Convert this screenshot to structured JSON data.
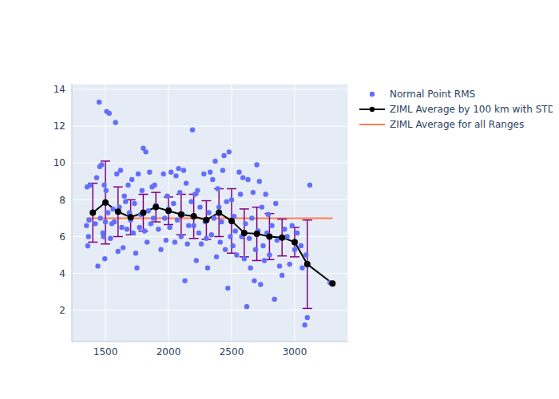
{
  "chart_data": {
    "type": "scatter",
    "grid": true,
    "legend": "right",
    "xlim": [
      1234,
      3424
    ],
    "xticks": [
      1500,
      2000,
      2500,
      3000
    ],
    "ylim": [
      0.3,
      14.3
    ],
    "yticks": [
      2,
      4,
      6,
      8,
      10,
      12,
      14
    ],
    "series": [
      {
        "name": "Normal Point RMS",
        "type": "scatter",
        "marker": "circle",
        "color": "#636efa",
        "x": [
          1350,
          1355,
          1360,
          1365,
          1370,
          1380,
          1400,
          1420,
          1430,
          1440,
          1450,
          1455,
          1460,
          1470,
          1480,
          1485,
          1490,
          1495,
          1500,
          1505,
          1510,
          1520,
          1530,
          1540,
          1550,
          1560,
          1570,
          1580,
          1590,
          1600,
          1610,
          1620,
          1630,
          1640,
          1650,
          1660,
          1670,
          1680,
          1690,
          1700,
          1710,
          1720,
          1730,
          1740,
          1750,
          1760,
          1770,
          1780,
          1790,
          1800,
          1810,
          1820,
          1830,
          1840,
          1850,
          1860,
          1870,
          1880,
          1890,
          1900,
          1920,
          1940,
          1960,
          1970,
          1980,
          1990,
          2000,
          2010,
          2020,
          2040,
          2050,
          2060,
          2070,
          2080,
          2090,
          2100,
          2110,
          2120,
          2130,
          2140,
          2150,
          2160,
          2180,
          2190,
          2200,
          2210,
          2220,
          2230,
          2240,
          2250,
          2260,
          2280,
          2290,
          2300,
          2310,
          2320,
          2330,
          2340,
          2350,
          2360,
          2370,
          2380,
          2390,
          2400,
          2410,
          2420,
          2430,
          2440,
          2450,
          2460,
          2470,
          2480,
          2490,
          2500,
          2510,
          2520,
          2530,
          2540,
          2560,
          2570,
          2580,
          2590,
          2600,
          2610,
          2620,
          2630,
          2640,
          2650,
          2660,
          2670,
          2680,
          2690,
          2700,
          2710,
          2720,
          2730,
          2740,
          2750,
          2760,
          2770,
          2780,
          2790,
          2800,
          2820,
          2840,
          2850,
          2860,
          2880,
          2900,
          2920,
          2940,
          2960,
          2980,
          3000,
          3020,
          3050,
          3060,
          3080,
          3090,
          3100,
          3120,
          3280
        ],
        "values": [
          6.6,
          8.7,
          5.5,
          6.0,
          6.9,
          8.8,
          7.3,
          6.7,
          9.2,
          4.4,
          13.3,
          9.8,
          7.0,
          9.9,
          6.2,
          6.0,
          8.8,
          4.8,
          6.8,
          8.5,
          12.8,
          7.3,
          12.7,
          5.9,
          6.7,
          7.5,
          6.8,
          12.2,
          9.4,
          5.2,
          7.6,
          9.6,
          6.5,
          5.4,
          8.2,
          7.9,
          6.4,
          8.8,
          7.3,
          6.9,
          9.1,
          6.2,
          7.8,
          5.1,
          4.3,
          9.4,
          6.5,
          7.2,
          8.5,
          10.8,
          6.3,
          10.6,
          5.7,
          7.4,
          9.5,
          6.7,
          8.7,
          7.0,
          8.8,
          7.7,
          6.4,
          5.3,
          9.4,
          7.0,
          5.8,
          8.2,
          7.5,
          6.5,
          9.5,
          7.8,
          5.7,
          9.3,
          6.9,
          9.7,
          8.4,
          6.0,
          7.2,
          9.6,
          3.6,
          8.9,
          5.6,
          6.6,
          7.9,
          11.8,
          6.6,
          8.3,
          4.7,
          8.5,
          6.2,
          7.6,
          5.6,
          9.4,
          6.8,
          5.9,
          4.3,
          7.3,
          9.5,
          6.1,
          9.1,
          7.0,
          10.1,
          4.9,
          8.6,
          7.6,
          5.7,
          6.8,
          9.6,
          10.4,
          5.3,
          7.9,
          3.2,
          10.6,
          6.0,
          8.0,
          5.5,
          7.1,
          6.3,
          5.0,
          9.5,
          8.3,
          6.0,
          9.2,
          4.8,
          6.7,
          2.2,
          9.1,
          5.9,
          4.3,
          7.0,
          8.4,
          3.6,
          5.3,
          9.9,
          6.3,
          9.0,
          3.4,
          7.6,
          5.5,
          4.7,
          8.3,
          6.2,
          7.2,
          5.0,
          6.6,
          2.6,
          7.8,
          5.8,
          4.4,
          3.9,
          6.4,
          6.0,
          4.5,
          6.6,
          5.3,
          6.2,
          5.5,
          4.3,
          1.2,
          5.0,
          1.6,
          8.8,
          3.5
        ]
      },
      {
        "name": "ZIML Average by 100 km with STD",
        "type": "line",
        "marker": "circle",
        "color": "#000000",
        "x": [
          1400,
          1500,
          1600,
          1700,
          1800,
          1900,
          2000,
          2100,
          2200,
          2300,
          2400,
          2500,
          2600,
          2700,
          2800,
          2900,
          3000,
          3100,
          3300
        ],
        "values": [
          7.3,
          7.85,
          7.35,
          7.05,
          7.3,
          7.6,
          7.4,
          7.2,
          7.1,
          6.9,
          7.3,
          6.85,
          6.2,
          6.15,
          6.0,
          5.95,
          5.7,
          4.5,
          3.45
        ],
        "std": [
          1.6,
          2.25,
          1.35,
          0.95,
          1.0,
          0.8,
          0.75,
          1.1,
          1.2,
          1.05,
          1.3,
          1.75,
          1.3,
          1.45,
          1.25,
          1.0,
          0.8,
          2.4,
          0
        ]
      },
      {
        "name": "ZIML Average for all Ranges",
        "type": "line",
        "color": "#ff7f50",
        "x": [
          1350,
          3300
        ],
        "values": [
          7.0,
          7.0
        ]
      }
    ]
  }
}
